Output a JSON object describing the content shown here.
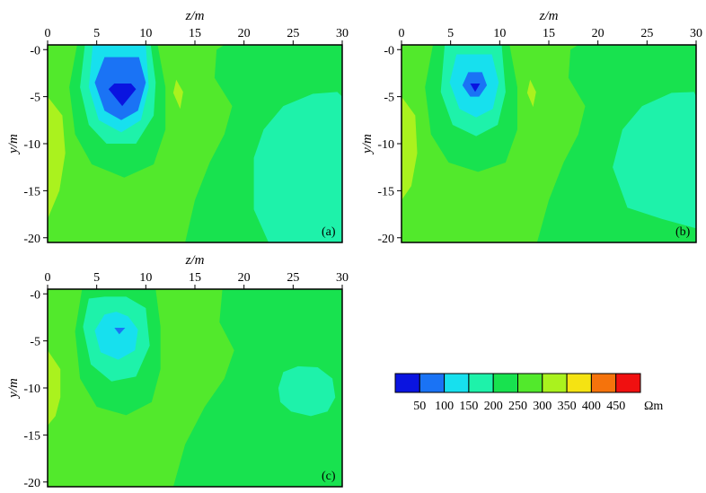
{
  "colors": {
    "bins": [
      "#0a14e0",
      "#1a73f5",
      "#17e0ee",
      "#1ef2aa",
      "#18e24f",
      "#52e92c",
      "#aaf21e",
      "#f5e312",
      "#f5730c",
      "#f01010"
    ],
    "frame": "#000000"
  },
  "colorbar": {
    "tick_labels": [
      "50",
      "100",
      "150",
      "200",
      "250",
      "300",
      "350",
      "400",
      "450"
    ],
    "unit": "Ωm"
  },
  "chart_data": [
    {
      "type": "heatmap",
      "panel_label": "(a)",
      "xlabel": "z/m",
      "ylabel": "y/m",
      "xlim": [
        0,
        30
      ],
      "ylim": [
        -20.5,
        0.5
      ],
      "x_ticks": [
        "0",
        "5",
        "10",
        "15",
        "20",
        "25",
        "30"
      ],
      "y_ticks": [
        "-0",
        "-5",
        "-10",
        "-15",
        "-20"
      ],
      "background": "#52e92c",
      "regions": [
        {
          "color": "#aaf21e",
          "points": [
            [
              0,
              -5
            ],
            [
              1.5,
              -7
            ],
            [
              1.8,
              -11
            ],
            [
              1.2,
              -15
            ],
            [
              0,
              -18
            ]
          ]
        },
        {
          "color": "#aaf21e",
          "points": [
            [
              13.1,
              -3.2
            ],
            [
              13.8,
              -4.5
            ],
            [
              13.5,
              -6.3
            ],
            [
              12.8,
              -4.6
            ]
          ]
        },
        {
          "color": "#18e24f",
          "points": [
            [
              14,
              -20.5
            ],
            [
              15,
              -16
            ],
            [
              16.5,
              -12
            ],
            [
              18,
              -9
            ],
            [
              18.8,
              -6
            ],
            [
              17,
              -3
            ],
            [
              17.2,
              0
            ],
            [
              18,
              0.5
            ],
            [
              30,
              0.5
            ],
            [
              30,
              -20.5
            ]
          ]
        },
        {
          "color": "#18e24f",
          "points": [
            [
              3,
              0.5
            ],
            [
              2.2,
              -4
            ],
            [
              2.8,
              -9
            ],
            [
              4.5,
              -12.2
            ],
            [
              7.8,
              -13.6
            ],
            [
              10.8,
              -12.2
            ],
            [
              12,
              -8.5
            ],
            [
              12,
              -4
            ],
            [
              11.2,
              0.5
            ]
          ]
        },
        {
          "color": "#1ef2aa",
          "points": [
            [
              21,
              -11.5
            ],
            [
              22,
              -8.5
            ],
            [
              24,
              -6
            ],
            [
              27,
              -4.7
            ],
            [
              29.5,
              -4.5
            ],
            [
              30,
              -5
            ],
            [
              30,
              -20.5
            ],
            [
              22.5,
              -20.5
            ],
            [
              21,
              -17
            ]
          ]
        },
        {
          "color": "#1ef2aa",
          "points": [
            [
              3.8,
              0.5
            ],
            [
              3.3,
              -4
            ],
            [
              4.2,
              -8
            ],
            [
              6,
              -10
            ],
            [
              9,
              -10
            ],
            [
              10.8,
              -7
            ],
            [
              11,
              -3.5
            ],
            [
              10.5,
              0.5
            ]
          ]
        },
        {
          "color": "#17e0ee",
          "points": [
            [
              4.6,
              0.5
            ],
            [
              4.2,
              -4
            ],
            [
              5.2,
              -7.5
            ],
            [
              7.5,
              -8.8
            ],
            [
              9.5,
              -7.5
            ],
            [
              10.3,
              -4
            ],
            [
              10,
              0.5
            ]
          ]
        },
        {
          "color": "#1a73f5",
          "points": [
            [
              5.8,
              -0.8
            ],
            [
              4.8,
              -3.5
            ],
            [
              5.8,
              -6.5
            ],
            [
              7.5,
              -7.5
            ],
            [
              9.2,
              -6.5
            ],
            [
              10,
              -3.5
            ],
            [
              9.3,
              -0.8
            ]
          ]
        },
        {
          "color": "#0a14e0",
          "points": [
            [
              6.8,
              -3.6
            ],
            [
              6.2,
              -4.2
            ],
            [
              7.6,
              -6
            ],
            [
              9,
              -4.2
            ],
            [
              8.5,
              -3.6
            ]
          ]
        }
      ]
    },
    {
      "type": "heatmap",
      "panel_label": "(b)",
      "xlabel": "z/m",
      "ylabel": "y/m",
      "xlim": [
        0,
        30
      ],
      "ylim": [
        -20.5,
        0.5
      ],
      "x_ticks": [
        "0",
        "5",
        "10",
        "15",
        "20",
        "25",
        "30"
      ],
      "y_ticks": [
        "-0",
        "-5",
        "-10",
        "-15",
        "-20"
      ],
      "background": "#52e92c",
      "regions": [
        {
          "color": "#aaf21e",
          "points": [
            [
              0,
              -5
            ],
            [
              1.4,
              -7
            ],
            [
              1.6,
              -11
            ],
            [
              1,
              -14.5
            ],
            [
              0,
              -16
            ]
          ]
        },
        {
          "color": "#aaf21e",
          "points": [
            [
              13.1,
              -3.2
            ],
            [
              13.7,
              -4.5
            ],
            [
              13.4,
              -6.1
            ],
            [
              12.8,
              -4.6
            ]
          ]
        },
        {
          "color": "#18e24f",
          "points": [
            [
              13.8,
              -20.5
            ],
            [
              15,
              -16
            ],
            [
              16.5,
              -12
            ],
            [
              18,
              -9
            ],
            [
              18.7,
              -6
            ],
            [
              17,
              -3
            ],
            [
              17.2,
              0
            ],
            [
              18,
              0.5
            ],
            [
              30,
              0.5
            ],
            [
              30,
              -20.5
            ]
          ]
        },
        {
          "color": "#18e24f",
          "points": [
            [
              3.2,
              0.5
            ],
            [
              2.4,
              -4
            ],
            [
              3,
              -9
            ],
            [
              4.8,
              -12
            ],
            [
              7.8,
              -13
            ],
            [
              10.6,
              -12
            ],
            [
              11.8,
              -8.5
            ],
            [
              11.8,
              -4
            ],
            [
              11,
              0.5
            ]
          ]
        },
        {
          "color": "#1ef2aa",
          "points": [
            [
              21.5,
              -12.5
            ],
            [
              22.5,
              -8.5
            ],
            [
              24.5,
              -6
            ],
            [
              27.5,
              -4.6
            ],
            [
              29.8,
              -4.5
            ],
            [
              30,
              -5
            ],
            [
              30,
              -19
            ],
            [
              26.5,
              -18
            ],
            [
              23,
              -16.8
            ]
          ]
        },
        {
          "color": "#1ef2aa",
          "points": [
            [
              4.4,
              0.5
            ],
            [
              4,
              -4.5
            ],
            [
              5.2,
              -8
            ],
            [
              7.6,
              -9.2
            ],
            [
              9.8,
              -8
            ],
            [
              10.6,
              -4.5
            ],
            [
              10.2,
              0.5
            ]
          ]
        },
        {
          "color": "#17e0ee",
          "points": [
            [
              5.6,
              -0.5
            ],
            [
              4.9,
              -3.5
            ],
            [
              5.9,
              -6.3
            ],
            [
              7.6,
              -7.2
            ],
            [
              9.3,
              -6.3
            ],
            [
              9.9,
              -3.5
            ],
            [
              9.2,
              -0.5
            ]
          ]
        },
        {
          "color": "#1a73f5",
          "points": [
            [
              6.8,
              -2.4
            ],
            [
              6.2,
              -3.8
            ],
            [
              7,
              -5
            ],
            [
              7.9,
              -5
            ],
            [
              8.7,
              -3.8
            ],
            [
              8.2,
              -2.4
            ]
          ]
        },
        {
          "color": "#0a14e0",
          "points": [
            [
              7,
              -3.6
            ],
            [
              7.5,
              -4.5
            ],
            [
              8,
              -3.6
            ]
          ]
        }
      ]
    },
    {
      "type": "heatmap",
      "panel_label": "(c)",
      "xlabel": "z/m",
      "ylabel": "y/m",
      "xlim": [
        0,
        30
      ],
      "ylim": [
        -20.5,
        0.5
      ],
      "x_ticks": [
        "0",
        "5",
        "10",
        "15",
        "20",
        "25",
        "30"
      ],
      "y_ticks": [
        "-0",
        "-5",
        "-10",
        "-15",
        "-20"
      ],
      "background": "#52e92c",
      "regions": [
        {
          "color": "#aaf21e",
          "points": [
            [
              0,
              -6
            ],
            [
              1.3,
              -8
            ],
            [
              1.3,
              -11
            ],
            [
              0.8,
              -13
            ],
            [
              0,
              -14
            ]
          ]
        },
        {
          "color": "#18e24f",
          "points": [
            [
              12.8,
              -20.5
            ],
            [
              14,
              -16
            ],
            [
              16,
              -12
            ],
            [
              18,
              -9
            ],
            [
              19,
              -6
            ],
            [
              17.5,
              -3
            ],
            [
              17.8,
              0.5
            ],
            [
              30,
              0.5
            ],
            [
              30,
              -20.5
            ]
          ]
        },
        {
          "color": "#18e24f",
          "points": [
            [
              3.5,
              0.5
            ],
            [
              2.8,
              -4
            ],
            [
              3.3,
              -9
            ],
            [
              5,
              -12
            ],
            [
              8,
              -12.9
            ],
            [
              10.6,
              -11.5
            ],
            [
              11.5,
              -8
            ],
            [
              11.5,
              -3.5
            ],
            [
              11,
              0.5
            ]
          ]
        },
        {
          "color": "#1ef2aa",
          "points": [
            [
              4.2,
              -0.5
            ],
            [
              3.6,
              -3.5
            ],
            [
              4.4,
              -7.5
            ],
            [
              6.5,
              -9.3
            ],
            [
              9,
              -8.8
            ],
            [
              10.4,
              -5.5
            ],
            [
              10,
              -1.5
            ],
            [
              8,
              -0.3
            ],
            [
              5.8,
              -0.3
            ]
          ]
        },
        {
          "color": "#1ef2aa",
          "points": [
            [
              23.5,
              -10
            ],
            [
              24,
              -8.3
            ],
            [
              25.5,
              -7.7
            ],
            [
              27.5,
              -7.8
            ],
            [
              29,
              -9
            ],
            [
              29.3,
              -11
            ],
            [
              28.5,
              -12.5
            ],
            [
              26.8,
              -13
            ],
            [
              24.8,
              -12.5
            ],
            [
              23.7,
              -11.5
            ]
          ]
        },
        {
          "color": "#17e0ee",
          "points": [
            [
              5.8,
              -2.2
            ],
            [
              4.8,
              -3.9
            ],
            [
              5.4,
              -6.2
            ],
            [
              7.2,
              -7
            ],
            [
              8.9,
              -6
            ],
            [
              9.2,
              -3.8
            ],
            [
              8.2,
              -2.4
            ],
            [
              7,
              -1.9
            ]
          ]
        },
        {
          "color": "#1a73f5",
          "points": [
            [
              6.8,
              -3.6
            ],
            [
              7.3,
              -4.3
            ],
            [
              7.9,
              -3.6
            ]
          ]
        }
      ]
    }
  ]
}
